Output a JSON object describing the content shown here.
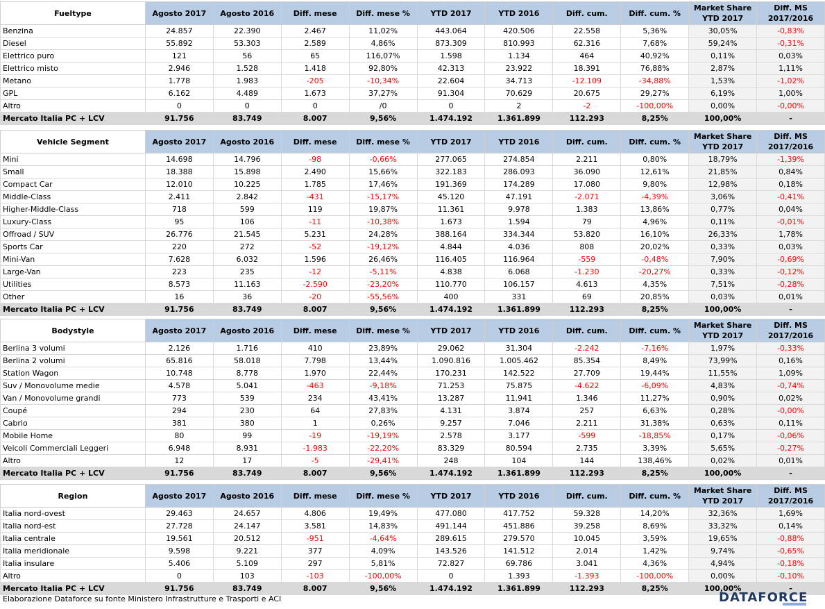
{
  "headers": [
    "Agosto 2017",
    "Agosto 2016",
    "Diff. mese",
    "Diff. mese %",
    "YTD 2017",
    "YTD 2016",
    "Diff. cum.",
    "Diff. cum. %",
    "Market Share YTD 2017",
    "Diff. MS 2017/2016"
  ],
  "tables": [
    {
      "title": "Fueltype",
      "rows": [
        [
          "Benzina",
          "24.857",
          "22.390",
          "2.467",
          "11,02%",
          "443.064",
          "420.506",
          "22.558",
          "5,36%",
          "30,05%",
          "-0,83%"
        ],
        [
          "Diesel",
          "55.892",
          "53.303",
          "2.589",
          "4,86%",
          "873.309",
          "810.993",
          "62.316",
          "7,68%",
          "59,24%",
          "-0,31%"
        ],
        [
          "Elettrico puro",
          "121",
          "56",
          "65",
          "116,07%",
          "1.598",
          "1.134",
          "464",
          "40,92%",
          "0,11%",
          "0,03%"
        ],
        [
          "Elettrico misto",
          "2.946",
          "1.528",
          "1.418",
          "92,80%",
          "42.313",
          "23.922",
          "18.391",
          "76,88%",
          "2,87%",
          "1,11%"
        ],
        [
          "Metano",
          "1.778",
          "1.983",
          "-205",
          "-10,34%",
          "22.604",
          "34.713",
          "-12.109",
          "-34,88%",
          "1,53%",
          "-1,02%"
        ],
        [
          "GPL",
          "6.162",
          "4.489",
          "1.673",
          "37,27%",
          "91.304",
          "70.629",
          "20.675",
          "29,27%",
          "6,19%",
          "1,00%"
        ],
        [
          "Altro",
          "0",
          "0",
          "0",
          "/0",
          "0",
          "2",
          "-2",
          "-100,00%",
          "0,00%",
          "-0,00%"
        ]
      ],
      "total": [
        "Mercato Italia PC + LCV",
        "91.756",
        "83.749",
        "8.007",
        "9,56%",
        "1.474.192",
        "1.361.899",
        "112.293",
        "8,25%",
        "100,00%",
        "-"
      ]
    },
    {
      "title": "Vehicle Segment",
      "rows": [
        [
          "Mini",
          "14.698",
          "14.796",
          "-98",
          "-0,66%",
          "277.065",
          "274.854",
          "2.211",
          "0,80%",
          "18,79%",
          "-1,39%"
        ],
        [
          "Small",
          "18.388",
          "15.898",
          "2.490",
          "15,66%",
          "322.183",
          "286.093",
          "36.090",
          "12,61%",
          "21,85%",
          "0,84%"
        ],
        [
          "Compact Car",
          "12.010",
          "10.225",
          "1.785",
          "17,46%",
          "191.369",
          "174.289",
          "17.080",
          "9,80%",
          "12,98%",
          "0,18%"
        ],
        [
          "Middle-Class",
          "2.411",
          "2.842",
          "-431",
          "-15,17%",
          "45.120",
          "47.191",
          "-2.071",
          "-4,39%",
          "3,06%",
          "-0,41%"
        ],
        [
          "Higher-Middle-Class",
          "718",
          "599",
          "119",
          "19,87%",
          "11.361",
          "9.978",
          "1.383",
          "13,86%",
          "0,77%",
          "0,04%"
        ],
        [
          "Luxury-Class",
          "95",
          "106",
          "-11",
          "-10,38%",
          "1.673",
          "1.594",
          "79",
          "4,96%",
          "0,11%",
          "-0,01%"
        ],
        [
          "Offroad / SUV",
          "26.776",
          "21.545",
          "5.231",
          "24,28%",
          "388.164",
          "334.344",
          "53.820",
          "16,10%",
          "26,33%",
          "1,78%"
        ],
        [
          "Sports Car",
          "220",
          "272",
          "-52",
          "-19,12%",
          "4.844",
          "4.036",
          "808",
          "20,02%",
          "0,33%",
          "0,03%"
        ],
        [
          "Mini-Van",
          "7.628",
          "6.032",
          "1.596",
          "26,46%",
          "116.405",
          "116.964",
          "-559",
          "-0,48%",
          "7,90%",
          "-0,69%"
        ],
        [
          "Large-Van",
          "223",
          "235",
          "-12",
          "-5,11%",
          "4.838",
          "6.068",
          "-1.230",
          "-20,27%",
          "0,33%",
          "-0,12%"
        ],
        [
          "Utilities",
          "8.573",
          "11.163",
          "-2.590",
          "-23,20%",
          "110.770",
          "106.157",
          "4.613",
          "4,35%",
          "7,51%",
          "-0,28%"
        ],
        [
          "Other",
          "16",
          "36",
          "-20",
          "-55,56%",
          "400",
          "331",
          "69",
          "20,85%",
          "0,03%",
          "0,01%"
        ]
      ],
      "total": [
        "Mercato Italia PC + LCV",
        "91.756",
        "83.749",
        "8.007",
        "9,56%",
        "1.474.192",
        "1.361.899",
        "112.293",
        "8,25%",
        "100,00%",
        "-"
      ]
    },
    {
      "title": "Bodystyle",
      "rows": [
        [
          "Berlina 3 volumi",
          "2.126",
          "1.716",
          "410",
          "23,89%",
          "29.062",
          "31.304",
          "-2.242",
          "-7,16%",
          "1,97%",
          "-0,33%"
        ],
        [
          "Berlina 2 volumi",
          "65.816",
          "58.018",
          "7.798",
          "13,44%",
          "1.090.816",
          "1.005.462",
          "85.354",
          "8,49%",
          "73,99%",
          "0,16%"
        ],
        [
          "Station Wagon",
          "10.748",
          "8.778",
          "1.970",
          "22,44%",
          "170.231",
          "142.522",
          "27.709",
          "19,44%",
          "11,55%",
          "1,09%"
        ],
        [
          "Suv / Monovolume medie",
          "4.578",
          "5.041",
          "-463",
          "-9,18%",
          "71.253",
          "75.875",
          "-4.622",
          "-6,09%",
          "4,83%",
          "-0,74%"
        ],
        [
          "Van / Monovolume grandi",
          "773",
          "539",
          "234",
          "43,41%",
          "13.287",
          "11.941",
          "1.346",
          "11,27%",
          "0,90%",
          "0,02%"
        ],
        [
          "Coupé",
          "294",
          "230",
          "64",
          "27,83%",
          "4.131",
          "3.874",
          "257",
          "6,63%",
          "0,28%",
          "-0,00%"
        ],
        [
          "Cabrio",
          "381",
          "380",
          "1",
          "0,26%",
          "9.257",
          "7.046",
          "2.211",
          "31,38%",
          "0,63%",
          "0,11%"
        ],
        [
          "Mobile Home",
          "80",
          "99",
          "-19",
          "-19,19%",
          "2.578",
          "3.177",
          "-599",
          "-18,85%",
          "0,17%",
          "-0,06%"
        ],
        [
          "Veicoli Commerciali Leggeri",
          "6.948",
          "8.931",
          "-1.983",
          "-22,20%",
          "83.329",
          "80.594",
          "2.735",
          "3,39%",
          "5,65%",
          "-0,27%"
        ],
        [
          "Altro",
          "12",
          "17",
          "-5",
          "-29,41%",
          "248",
          "104",
          "144",
          "138,46%",
          "0,02%",
          "0,01%"
        ]
      ],
      "total": [
        "Mercato Italia PC + LCV",
        "91.756",
        "83.749",
        "8.007",
        "9,56%",
        "1.474.192",
        "1.361.899",
        "112.293",
        "8,25%",
        "100,00%",
        "-"
      ]
    },
    {
      "title": "Region",
      "rows": [
        [
          "Italia nord-ovest",
          "29.463",
          "24.657",
          "4.806",
          "19,49%",
          "477.080",
          "417.752",
          "59.328",
          "14,20%",
          "32,36%",
          "1,69%"
        ],
        [
          "Italia nord-est",
          "27.728",
          "24.147",
          "3.581",
          "14,83%",
          "491.144",
          "451.886",
          "39.258",
          "8,69%",
          "33,32%",
          "0,14%"
        ],
        [
          "Italia centrale",
          "19.561",
          "20.512",
          "-951",
          "-4,64%",
          "289.615",
          "279.570",
          "10.045",
          "3,59%",
          "19,65%",
          "-0,88%"
        ],
        [
          "Italia meridionale",
          "9.598",
          "9.221",
          "377",
          "4,09%",
          "143.526",
          "141.512",
          "2.014",
          "1,42%",
          "9,74%",
          "-0,65%"
        ],
        [
          "Italia insulare",
          "5.406",
          "5.109",
          "297",
          "5,81%",
          "72.827",
          "69.786",
          "3.041",
          "4,36%",
          "4,94%",
          "-0,18%"
        ],
        [
          "Altro",
          "0",
          "103",
          "-103",
          "-100,00%",
          "0",
          "1.393",
          "-1.393",
          "-100,00%",
          "0,00%",
          "-0,10%"
        ]
      ],
      "total": [
        "Mercato Italia PC + LCV",
        "91.756",
        "83.749",
        "8.007",
        "9,56%",
        "1.474.192",
        "1.361.899",
        "112.293",
        "8,25%",
        "100,00%",
        "-"
      ]
    }
  ],
  "footer_text": "Elaborazione Dataforce su fonte Ministero Infrastrutture e Trasporti e ACI",
  "logo_text": "DATAFORCE",
  "colors": {
    "header_bg": "#b8cce4",
    "ms_bg": "#f2f2f2",
    "total_bg": "#d9d9d9",
    "negative": "#ff0000"
  }
}
